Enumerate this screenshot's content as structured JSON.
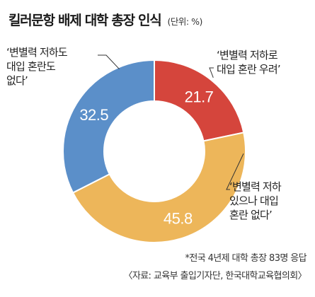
{
  "header": {
    "title": "킬러문항 배제 대학 총장 인식",
    "unit": "(단위: %)"
  },
  "chart_data": {
    "type": "pie",
    "donut": true,
    "start_angle_deg": 0,
    "direction": "clockwise",
    "slices": [
      {
        "label": "‘변별력 저하로 대입 혼란 우려’",
        "value": 21.7,
        "color": "#D5453C"
      },
      {
        "label": "‘변별력 저하 있으나 대입 혼란 없다’",
        "value": 45.8,
        "color": "#EDB65A"
      },
      {
        "label": "‘변별력 저하도 대입 혼란도 없다’",
        "value": 32.5,
        "color": "#5B8FC9"
      }
    ],
    "title": "킬러문항 배제 대학 총장 인식"
  },
  "callouts": {
    "top_right": [
      "‘변별력 저하로",
      "대입 혼란 우려’"
    ],
    "bottom_right": [
      "‘변별력 저하",
      "있으나 대입",
      "혼란 없다’"
    ],
    "left": [
      "‘변별력 저하도",
      "대입 혼란도",
      "없다’"
    ]
  },
  "footer": {
    "note": "*전국 4년제 대학 총장 83명 응답",
    "source": "〈자료: 교육부 출입기자단, 한국대학교육협의회〉"
  }
}
